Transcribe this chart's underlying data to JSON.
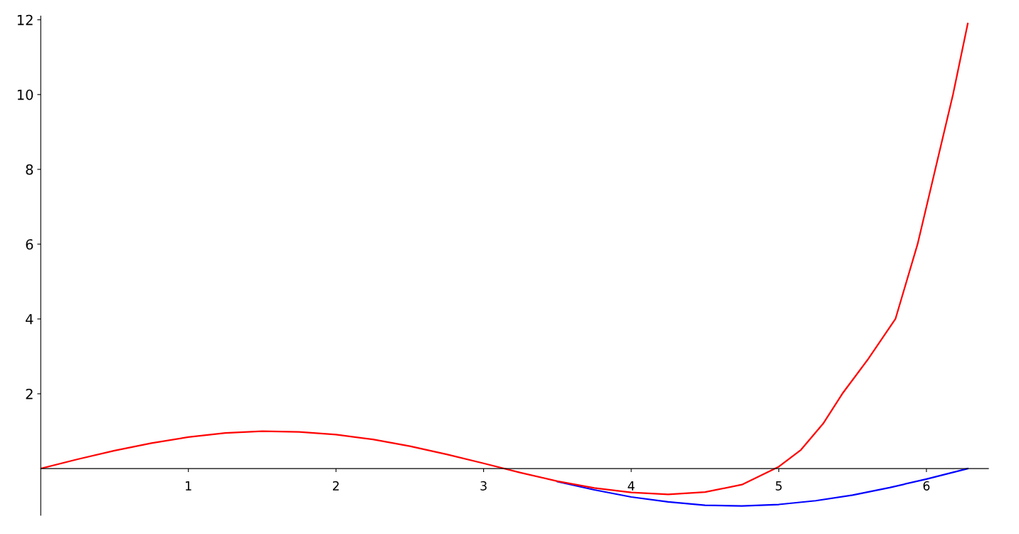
{
  "chart_data": {
    "type": "line",
    "xlim": [
      0,
      6.42
    ],
    "ylim": [
      -1.25,
      12.1
    ],
    "xticks": [
      1,
      2,
      3,
      4,
      5,
      6
    ],
    "yticks": [
      2,
      4,
      6,
      8,
      10,
      12
    ],
    "grid": false,
    "legend": false,
    "series": [
      {
        "color": "#0000ff",
        "x": [
          3.5,
          3.75,
          4,
          4.25,
          4.5,
          4.75,
          5,
          5.25,
          5.5,
          5.75,
          6,
          6.28
        ],
        "values": [
          -0.35,
          -0.57,
          -0.76,
          -0.89,
          -0.98,
          -1.0,
          -0.96,
          -0.86,
          -0.71,
          -0.51,
          -0.28,
          0
        ]
      },
      {
        "color": "#ff0000",
        "x": [
          0,
          0.25,
          0.5,
          0.75,
          1,
          1.25,
          1.5,
          1.75,
          2,
          2.25,
          2.5,
          2.75,
          3,
          3.25,
          3.5,
          3.75,
          4,
          4.25,
          4.5,
          4.75,
          5,
          5.15,
          5.3,
          5.43,
          5.6,
          5.79,
          5.94,
          6.06,
          6.18,
          6.28
        ],
        "values": [
          0,
          0.25,
          0.48,
          0.68,
          0.84,
          0.95,
          1.0,
          0.98,
          0.91,
          0.78,
          0.6,
          0.38,
          0.14,
          -0.11,
          -0.34,
          -0.52,
          -0.64,
          -0.69,
          -0.63,
          -0.43,
          0.05,
          0.5,
          1.2,
          2,
          2.9,
          4,
          6,
          8,
          10,
          11.9
        ]
      }
    ]
  }
}
